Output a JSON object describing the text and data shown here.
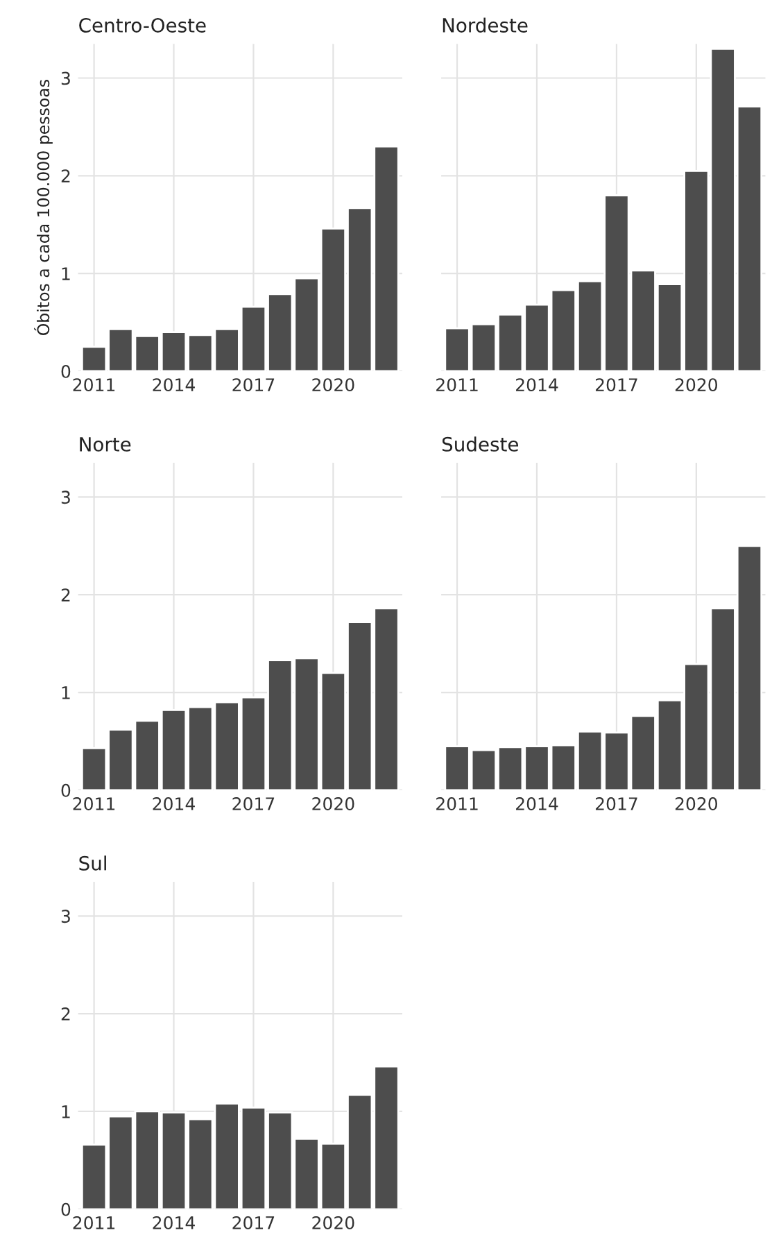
{
  "chart_data": [
    {
      "type": "bar",
      "title": "Centro-Oeste",
      "ylabel": "Óbitos a cada 100.000 pessoas",
      "x": [
        2011,
        2012,
        2013,
        2014,
        2015,
        2016,
        2017,
        2018,
        2019,
        2020,
        2021,
        2022
      ],
      "values": [
        0.25,
        0.43,
        0.36,
        0.4,
        0.37,
        0.43,
        0.66,
        0.79,
        0.95,
        1.46,
        1.67,
        2.3
      ],
      "color": "#4d4d4d",
      "xlim": [
        2010.4,
        2022.6
      ],
      "ylim": [
        0,
        3.35
      ],
      "xticks": [
        2011,
        2014,
        2017,
        2020
      ],
      "yticks": [
        0,
        1,
        2,
        3
      ],
      "grid": true
    },
    {
      "type": "bar",
      "title": "Nordeste",
      "x": [
        2011,
        2012,
        2013,
        2014,
        2015,
        2016,
        2017,
        2018,
        2019,
        2020,
        2021,
        2022
      ],
      "values": [
        0.44,
        0.48,
        0.58,
        0.68,
        0.83,
        0.92,
        1.8,
        1.03,
        0.89,
        2.05,
        3.3,
        2.71
      ],
      "color": "#4d4d4d",
      "xlim": [
        2010.4,
        2022.6
      ],
      "ylim": [
        0,
        3.35
      ],
      "xticks": [
        2011,
        2014,
        2017,
        2020
      ],
      "yticks": [
        0,
        1,
        2,
        3
      ],
      "grid": true,
      "tick_labels": "x"
    },
    {
      "type": "bar",
      "title": "Norte",
      "x": [
        2011,
        2012,
        2013,
        2014,
        2015,
        2016,
        2017,
        2018,
        2019,
        2020,
        2021,
        2022
      ],
      "values": [
        0.43,
        0.62,
        0.71,
        0.82,
        0.85,
        0.9,
        0.95,
        1.33,
        1.35,
        1.2,
        1.72,
        1.86
      ],
      "color": "#4d4d4d",
      "xlim": [
        2010.4,
        2022.6
      ],
      "ylim": [
        0,
        3.35
      ],
      "xticks": [
        2011,
        2014,
        2017,
        2020
      ],
      "yticks": [
        0,
        1,
        2,
        3
      ],
      "grid": true
    },
    {
      "type": "bar",
      "title": "Sudeste",
      "x": [
        2011,
        2012,
        2013,
        2014,
        2015,
        2016,
        2017,
        2018,
        2019,
        2020,
        2021,
        2022
      ],
      "values": [
        0.45,
        0.41,
        0.44,
        0.45,
        0.46,
        0.6,
        0.59,
        0.76,
        0.92,
        1.29,
        1.86,
        2.5
      ],
      "color": "#4d4d4d",
      "xlim": [
        2010.4,
        2022.6
      ],
      "ylim": [
        0,
        3.35
      ],
      "xticks": [
        2011,
        2014,
        2017,
        2020
      ],
      "yticks": [
        0,
        1,
        2,
        3
      ],
      "grid": true,
      "tick_labels": "x"
    },
    {
      "type": "bar",
      "title": "Sul",
      "x": [
        2011,
        2012,
        2013,
        2014,
        2015,
        2016,
        2017,
        2018,
        2019,
        2020,
        2021,
        2022
      ],
      "values": [
        0.66,
        0.95,
        1.0,
        0.99,
        0.92,
        1.08,
        1.04,
        0.99,
        0.72,
        0.67,
        1.17,
        1.46
      ],
      "color": "#4d4d4d",
      "xlim": [
        2010.4,
        2022.6
      ],
      "ylim": [
        0,
        3.35
      ],
      "xticks": [
        2011,
        2014,
        2017,
        2020
      ],
      "yticks": [
        0,
        1,
        2,
        3
      ],
      "grid": true
    }
  ]
}
